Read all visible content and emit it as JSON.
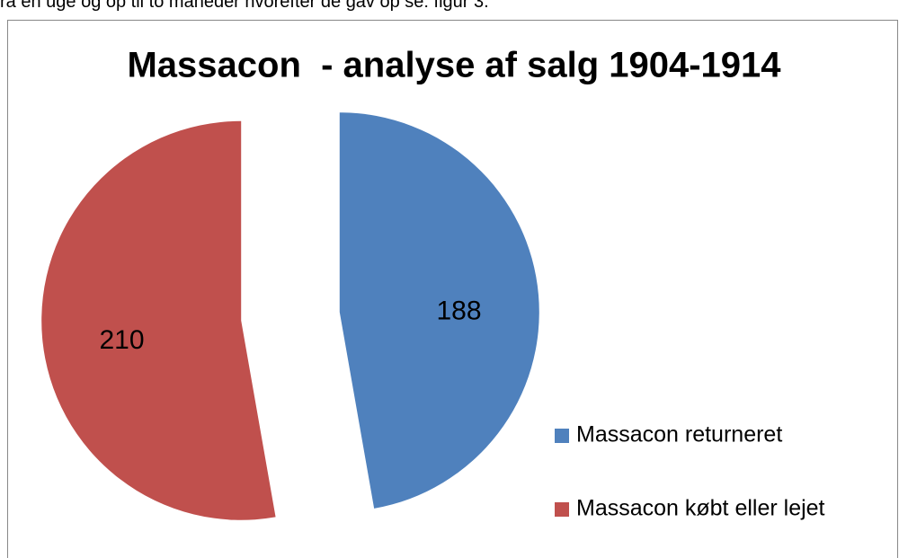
{
  "text_above": "ra en uge og op til to måneder hvorefter de gav op se: figur 3.",
  "chart_data": {
    "type": "pie",
    "title": "Massacon  - analyse af salg 1904-1914",
    "categories": [
      "Massacon returneret",
      "Massacon købt eller lejet"
    ],
    "values": [
      188,
      210
    ],
    "colors": [
      "#4f81bd",
      "#c0504d"
    ],
    "exploded": true,
    "legend": "right"
  }
}
